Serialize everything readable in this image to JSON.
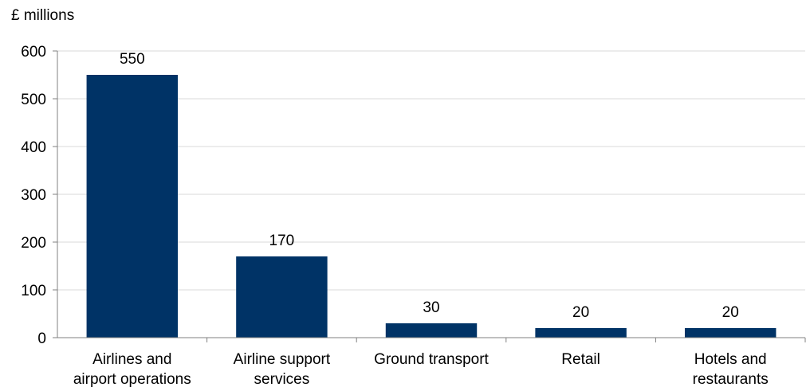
{
  "chart_data": {
    "type": "bar",
    "title": "",
    "unit_label": "£ millions",
    "xlabel": "",
    "ylabel": "",
    "ylim": [
      0,
      600
    ],
    "yticks": [
      0,
      100,
      200,
      300,
      400,
      500,
      600
    ],
    "grid": true,
    "legend": "none",
    "bar_color": "#003366",
    "categories": [
      [
        "Airlines and",
        "airport operations"
      ],
      [
        "Airline support",
        "services"
      ],
      [
        "Ground transport"
      ],
      [
        "Retail"
      ],
      [
        "Hotels and",
        "restaurants"
      ]
    ],
    "values": [
      550,
      170,
      30,
      20,
      20
    ],
    "data_labels": [
      "550",
      "170",
      "30",
      "20",
      "20"
    ]
  }
}
